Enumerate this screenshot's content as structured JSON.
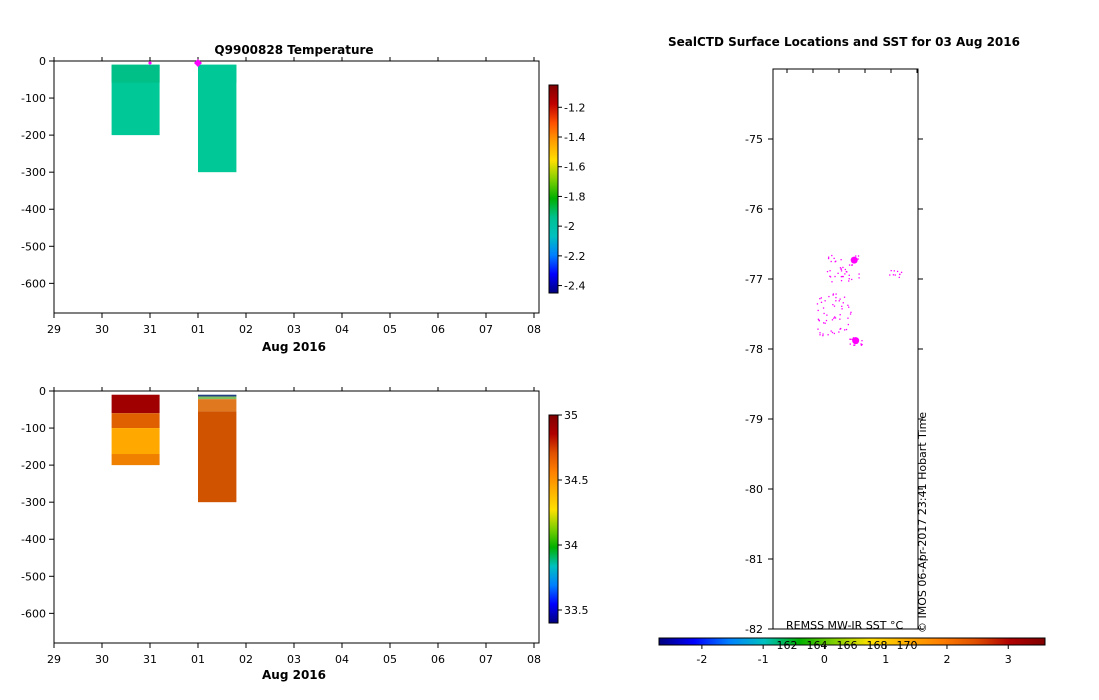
{
  "chart_data": [
    {
      "type": "heatmap",
      "title": "Q9900828  Temperature",
      "xlabel": "Aug 2016",
      "x_ticks": [
        "29",
        "30",
        "31",
        "01",
        "02",
        "03",
        "04",
        "05",
        "06",
        "07",
        "08"
      ],
      "ylim": [
        -680,
        0
      ],
      "y_ticks": [
        0,
        -100,
        -200,
        -300,
        -400,
        -500,
        -600
      ],
      "colorbar": {
        "ticks": [
          -1.2,
          -1.4,
          -1.6,
          -1.8,
          -2,
          -2.2,
          -2.4
        ],
        "range": [
          -2.45,
          -1.05
        ],
        "colors": [
          "#00007f",
          "#0000ff",
          "#0080ff",
          "#00c0c0",
          "#00c090",
          "#00b000",
          "#80d000",
          "#ffe000",
          "#ffa000",
          "#ff5000",
          "#c00000",
          "#800000"
        ]
      },
      "profiles": [
        {
          "start_day": 1.2,
          "end_day": 2.2,
          "max_depth": -200,
          "top_color": "#00c088",
          "body_color": "#00c896"
        },
        {
          "start_day": 3.0,
          "end_day": 3.8,
          "max_depth": -300,
          "top_color": "#00c896",
          "body_color": "#00c896"
        }
      ],
      "markers": [
        {
          "day": 2.0,
          "depth": 0,
          "color": "#ff00ff",
          "size": "small"
        },
        {
          "day": 3.0,
          "depth": 0,
          "color": "#ff00ff",
          "size": "large"
        }
      ]
    },
    {
      "type": "heatmap",
      "title": "",
      "xlabel": "Aug 2016",
      "x_ticks": [
        "29",
        "30",
        "31",
        "01",
        "02",
        "03",
        "04",
        "05",
        "06",
        "07",
        "08"
      ],
      "ylim": [
        -680,
        0
      ],
      "y_ticks": [
        0,
        -100,
        -200,
        -300,
        -400,
        -500,
        -600
      ],
      "colorbar": {
        "ticks": [
          35,
          34.5,
          34,
          33.5
        ],
        "range": [
          33.4,
          35.0
        ],
        "colors": [
          "#00007f",
          "#0000ff",
          "#0080ff",
          "#00c0c0",
          "#00b000",
          "#80d000",
          "#ffe000",
          "#ffb000",
          "#ff8000",
          "#e05000",
          "#b00000",
          "#800000"
        ]
      },
      "profiles": [
        {
          "start_day": 1.2,
          "end_day": 2.2,
          "max_depth": -200,
          "bands": [
            {
              "top": -10,
              "bottom": -60,
              "color": "#a00000"
            },
            {
              "top": -60,
              "bottom": -100,
              "color": "#e06000"
            },
            {
              "top": -100,
              "bottom": -170,
              "color": "#ffa800"
            },
            {
              "top": -170,
              "bottom": -200,
              "color": "#f08000"
            }
          ]
        },
        {
          "start_day": 3.0,
          "end_day": 3.8,
          "max_depth": -300,
          "bands": [
            {
              "top": -10,
              "bottom": -15,
              "color": "#204080"
            },
            {
              "top": -15,
              "bottom": -22,
              "color": "#80c060"
            },
            {
              "top": -22,
              "bottom": -55,
              "color": "#e07820"
            },
            {
              "top": -55,
              "bottom": -300,
              "color": "#d05400"
            }
          ]
        }
      ]
    },
    {
      "type": "scatter",
      "title": "SealCTD Surface Locations and SST for 03 Aug 2016",
      "ylim": [
        -82,
        -74
      ],
      "y_ticks": [
        -75,
        -76,
        -77,
        -78,
        -79,
        -80,
        -81,
        -82
      ],
      "y_tick_labels": [
        "-75",
        "-76",
        "-77",
        "-78",
        "-79",
        "-80",
        "-81",
        "-82"
      ],
      "colorbar_label": "REMSS MW-IR SST °C",
      "colorbar_ticks": [
        "-2",
        "-1",
        "0",
        "1",
        "2",
        "3"
      ],
      "colorbar_range": [
        -2.7,
        3.6
      ],
      "colorbar_colors": [
        "#00007f",
        "#0000ff",
        "#0080ff",
        "#00c0c0",
        "#00b000",
        "#80d000",
        "#ffe000",
        "#ffb000",
        "#ff8000",
        "#e05000",
        "#b00000",
        "#800000"
      ],
      "inner_labels": [
        "162",
        "164",
        "166",
        "168",
        "170"
      ],
      "credit": "© IMOS 06-Apr-2017 23:41 Hobart Time",
      "point_color": "#ff00ff",
      "highlight_points": [
        {
          "rel_x": 0.56,
          "lat": -76.73
        },
        {
          "rel_x": 0.57,
          "lat": -77.88
        }
      ]
    }
  ]
}
